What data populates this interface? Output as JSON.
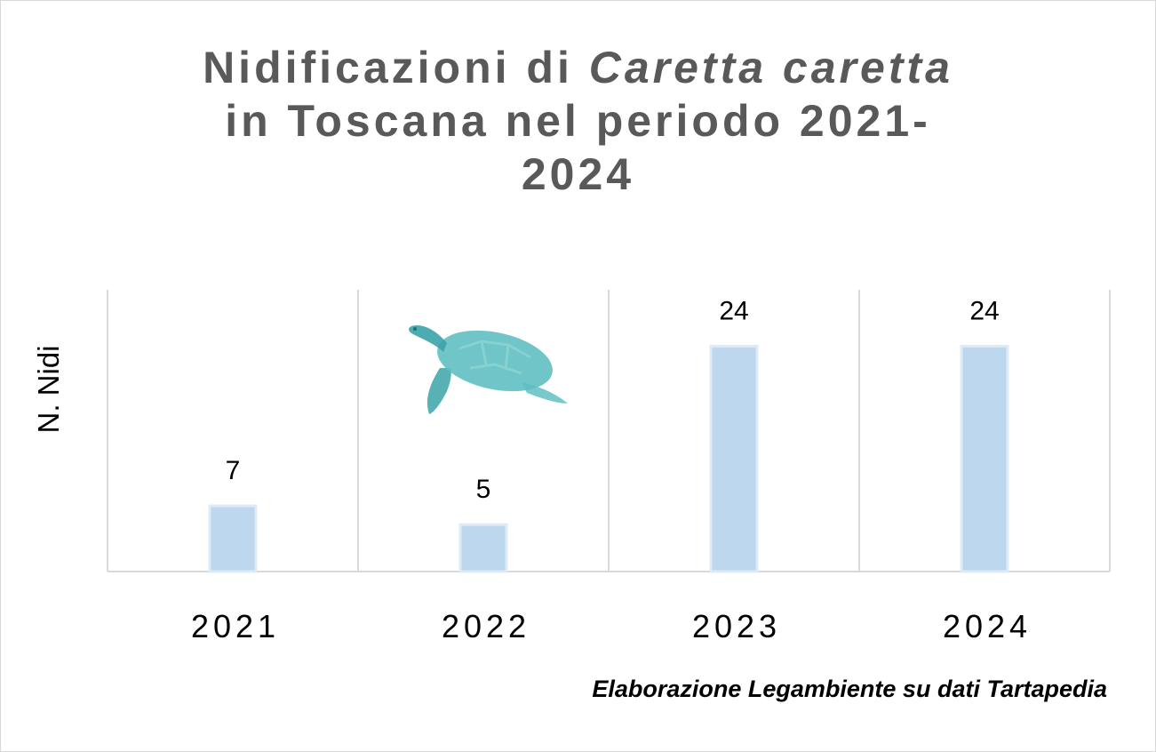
{
  "chart_data": {
    "type": "bar",
    "title_parts": [
      "Nidificazioni di ",
      "Caretta caretta",
      "in Toscana nel periodo 2021-",
      "2024"
    ],
    "ylabel": "N. Nidi",
    "xlabel": "",
    "categories": [
      "2021",
      "2022",
      "2023",
      "2024"
    ],
    "values": [
      7,
      5,
      24,
      24
    ],
    "ylim": [
      0,
      30
    ],
    "grid": "vertical separators between categories",
    "legend": "none",
    "bar_color": "#bdd7ee",
    "bar_edge_color": "#deebf7",
    "grid_color": "#d9d9d9",
    "source": "Elaborazione Legambiente su dati Tartapedia"
  },
  "decoration": {
    "icon": "sea-turtle-icon",
    "colors": [
      "#5fbfc2",
      "#3aa3a8",
      "#8fd3d3"
    ]
  }
}
